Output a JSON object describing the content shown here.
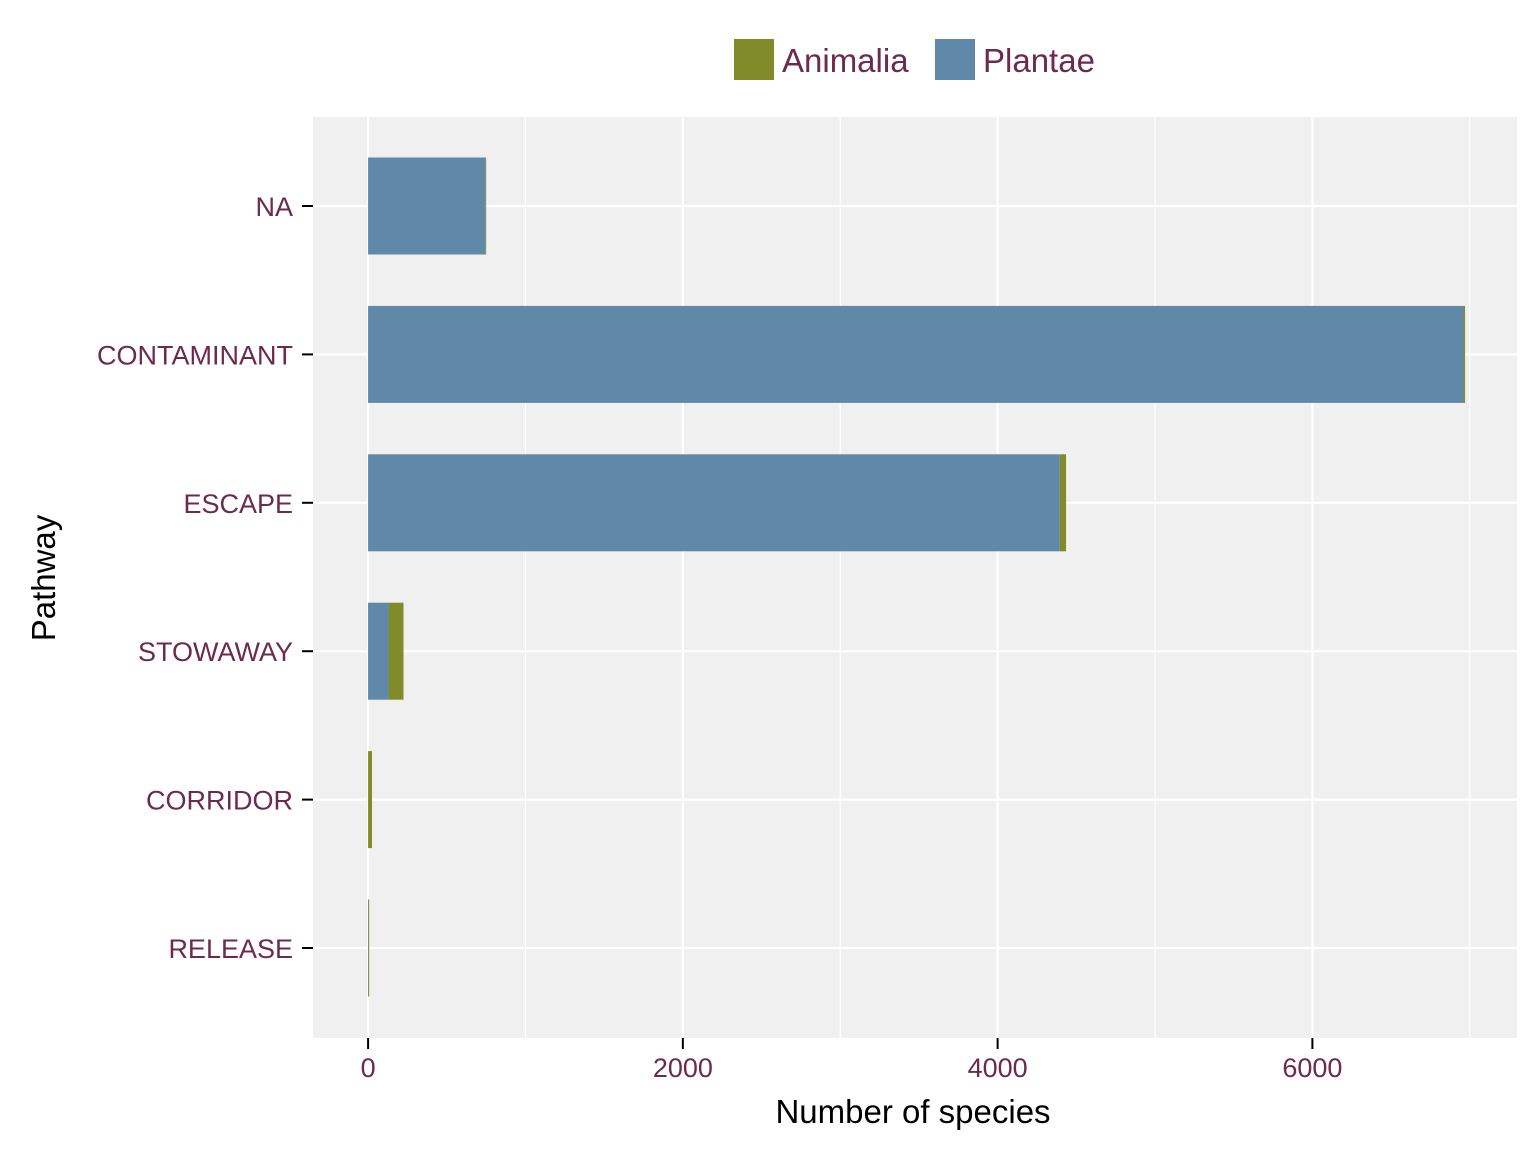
{
  "chart_data": {
    "type": "bar",
    "orientation": "horizontal",
    "stacked": true,
    "title": "",
    "xlabel": "Number of species",
    "ylabel": "Pathway",
    "categories": [
      "NA",
      "CONTAMINANT",
      "ESCAPE",
      "STOWAWAY",
      "CORRIDOR",
      "RELEASE"
    ],
    "series": [
      {
        "name": "Plantae",
        "color": "#6088a8",
        "values": [
          745,
          6960,
          4395,
          130,
          0,
          2
        ]
      },
      {
        "name": "Animalia",
        "color": "#818b2a",
        "values": [
          5,
          10,
          40,
          95,
          25,
          2
        ]
      }
    ],
    "stack_order": [
      "Plantae",
      "Animalia"
    ],
    "legend_order": [
      "Animalia",
      "Plantae"
    ],
    "xlim": [
      -350,
      7300
    ],
    "xticks": [
      0,
      2000,
      4000,
      6000
    ],
    "legend_position": "top",
    "grid": true,
    "colors": {
      "panel_background": "#f0f0f0",
      "grid": "#ffffff",
      "tick_label": "#6b2a4e",
      "axis_title": "#000000",
      "legend_text": "#6b2a4e"
    }
  }
}
